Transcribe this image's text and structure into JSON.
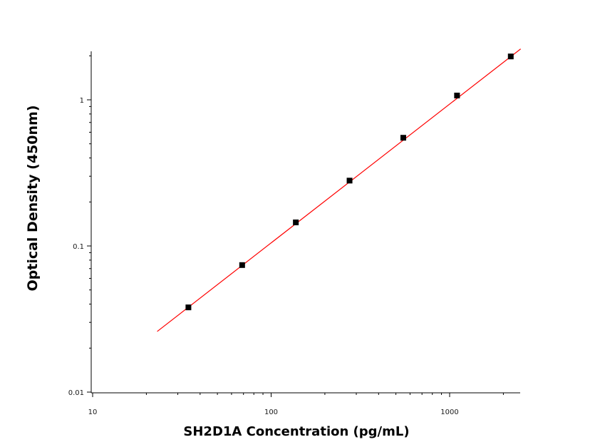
{
  "chart_data": {
    "type": "scatter",
    "title": "",
    "xlabel": "SH2D1A Concentration (pg/mL)",
    "ylabel": "Optical Density (450nm)",
    "x_scale": "log",
    "y_scale": "log",
    "xlim": [
      10,
      2500
    ],
    "ylim": [
      0.01,
      2.2
    ],
    "x_ticks": [
      "10",
      "100",
      "1000"
    ],
    "y_ticks": [
      "0.01",
      "0.1",
      "1"
    ],
    "grid": false,
    "legend": "none",
    "series": [
      {
        "kind": "points",
        "marker": "square",
        "color": "#000000",
        "x": [
          34.4,
          68.8,
          137.5,
          275,
          550,
          1100,
          2200
        ],
        "y": [
          0.038,
          0.074,
          0.145,
          0.28,
          0.55,
          1.07,
          1.98
        ]
      },
      {
        "kind": "fit-line",
        "color": "#ff0000",
        "x": [
          23,
          2500
        ],
        "y": [
          0.026,
          2.23
        ]
      }
    ]
  }
}
